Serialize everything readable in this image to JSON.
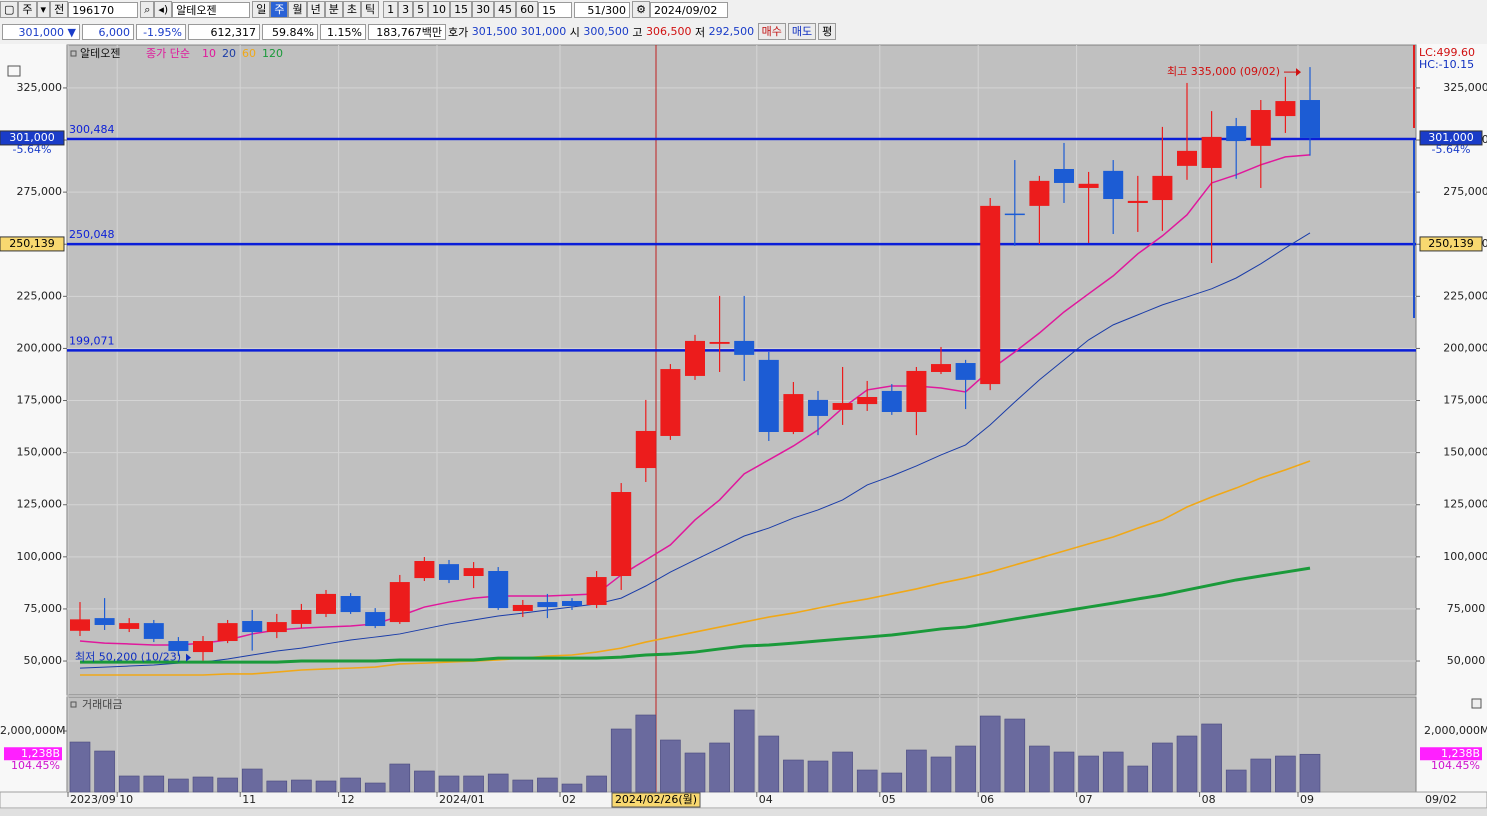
{
  "toolbar": {
    "stock_type": "주",
    "scope": "전",
    "code": "196170",
    "name": "알테오젠",
    "periods": [
      "일",
      "주",
      "월",
      "년",
      "분",
      "초",
      "틱"
    ],
    "intervals": [
      "1",
      "3",
      "5",
      "10",
      "15",
      "30",
      "45",
      "60"
    ],
    "count": "15",
    "position": "51/300",
    "date": "2024/09/02"
  },
  "quote": {
    "price": "301,000",
    "arrow": "▼",
    "change": "6,000",
    "change_rate": "-1.95%",
    "volume": "612,317",
    "ratio": "59.84%",
    "turnover": "1.15%",
    "amount": "183,767백만",
    "bid_ask_label": "호가",
    "ask": "301,500",
    "bid": "301,000",
    "open_label": "시",
    "open": "300,500",
    "high_label": "고",
    "high": "306,500",
    "low_label": "저",
    "low": "292,500",
    "buy": "매수",
    "sell": "매도",
    "avg": "평"
  },
  "chart_data": {
    "type": "candlestick",
    "title": "알테오젠",
    "ma_label": "종가 단순",
    "categories": [
      "2023/09",
      null,
      "10",
      null,
      null,
      null,
      null,
      "11",
      null,
      null,
      null,
      "12",
      null,
      null,
      null,
      "2024/01",
      null,
      null,
      null,
      null,
      "02",
      null,
      null,
      null,
      null,
      null,
      null,
      null,
      "04",
      null,
      null,
      null,
      null,
      "05",
      null,
      null,
      null,
      "06",
      null,
      null,
      null,
      "07",
      null,
      null,
      null,
      null,
      "08",
      null,
      null,
      null,
      "09"
    ],
    "crosshair_label": "2024/02/26(월)",
    "end_label": "09/02",
    "up_color": "#ec1c1c",
    "down_color": "#1c5cd4",
    "open": [
      64500,
      70600,
      65400,
      68200,
      59600,
      54300,
      59600,
      69200,
      63900,
      67800,
      72600,
      81200,
      73500,
      68700,
      89800,
      96500,
      90800,
      93200,
      74000,
      78300,
      78800,
      76900,
      90800,
      142600,
      158000,
      186800,
      202200,
      203600,
      194500,
      159900,
      175300,
      170500,
      173300,
      179600,
      169500,
      188700,
      193000,
      182900,
      264700,
      268400,
      286100,
      277000,
      285200,
      269800,
      271200,
      287600,
      286600,
      306700,
      297200,
      311500,
      319200
    ],
    "high": [
      78300,
      80200,
      70600,
      69700,
      61500,
      62000,
      69700,
      74500,
      72600,
      77400,
      84100,
      82600,
      75400,
      91300,
      99900,
      98500,
      97500,
      95100,
      79300,
      82200,
      80200,
      93200,
      135400,
      175300,
      192500,
      206500,
      225200,
      225200,
      198300,
      183900,
      179600,
      191100,
      184400,
      182900,
      191100,
      200700,
      194500,
      272200,
      290400,
      282800,
      298600,
      284700,
      290400,
      282800,
      306300,
      327400,
      313900,
      310600,
      319200,
      330300,
      335000
    ],
    "low": [
      62000,
      64900,
      63900,
      59100,
      52400,
      50200,
      58600,
      55000,
      61000,
      65800,
      71100,
      72600,
      65800,
      67800,
      88400,
      87400,
      85000,
      74500,
      71100,
      70600,
      74500,
      75400,
      84100,
      135900,
      156100,
      184900,
      188700,
      184400,
      155600,
      158900,
      158400,
      163300,
      170000,
      168100,
      158400,
      187700,
      170900,
      180000,
      249200,
      250100,
      269800,
      250600,
      254900,
      255900,
      256400,
      280900,
      241000,
      281400,
      277000,
      303400,
      292500
    ],
    "close": [
      70000,
      67300,
      68200,
      60600,
      54800,
      59600,
      68200,
      63900,
      68700,
      74500,
      82200,
      73500,
      66800,
      87900,
      98000,
      88900,
      94600,
      75400,
      76900,
      75900,
      76400,
      90300,
      131100,
      160400,
      190100,
      203600,
      203100,
      196900,
      159900,
      178100,
      167600,
      173800,
      176700,
      169500,
      189200,
      192500,
      184900,
      268400,
      264500,
      280400,
      279400,
      279000,
      271700,
      270800,
      282800,
      294800,
      301500,
      299500,
      314400,
      318700,
      301000
    ],
    "series": [
      {
        "name": "10",
        "color": "#e0189c",
        "width": 1.5,
        "values": [
          59600,
          58600,
          58200,
          57700,
          57700,
          58600,
          60100,
          63000,
          64900,
          65800,
          66300,
          66800,
          67800,
          71600,
          75900,
          78300,
          80200,
          81200,
          81200,
          81200,
          81700,
          82200,
          91300,
          98500,
          105700,
          117700,
          127300,
          139800,
          146500,
          153200,
          160900,
          171400,
          180100,
          182000,
          182000,
          181000,
          179100,
          189700,
          198300,
          207400,
          217500,
          226200,
          234800,
          245400,
          254000,
          264100,
          279400,
          283300,
          288100,
          291900,
          292900
        ]
      },
      {
        "name": "20",
        "color": "#1a3ca8",
        "width": 1,
        "values": [
          46600,
          47100,
          47600,
          48100,
          49000,
          49500,
          51000,
          52900,
          54800,
          56200,
          58200,
          60100,
          61500,
          63000,
          65400,
          67800,
          69700,
          71600,
          73000,
          74500,
          75900,
          77400,
          80200,
          86000,
          92700,
          98500,
          104200,
          110000,
          113800,
          118600,
          122500,
          127300,
          134500,
          138800,
          143600,
          148900,
          153700,
          163300,
          174300,
          184900,
          194500,
          204100,
          211300,
          216100,
          220900,
          224700,
          228600,
          233800,
          240600,
          248200,
          255400
        ]
      },
      {
        "name": "60",
        "color": "#f0a818",
        "width": 1.6,
        "values": [
          43300,
          43300,
          43300,
          43300,
          43300,
          43300,
          43800,
          43800,
          44700,
          45700,
          46200,
          46600,
          47100,
          48600,
          49000,
          49500,
          50000,
          50500,
          51400,
          52400,
          52900,
          54300,
          56200,
          59100,
          61500,
          63900,
          66300,
          68700,
          71100,
          73000,
          75400,
          77800,
          79800,
          82200,
          84600,
          87400,
          89800,
          92700,
          96100,
          99400,
          102800,
          106200,
          109500,
          113800,
          117700,
          123900,
          128700,
          133000,
          137800,
          141700,
          146000
        ]
      },
      {
        "name": "120",
        "color": "#1a9a3a",
        "width": 3,
        "values": [
          49500,
          49500,
          49500,
          49500,
          49500,
          49500,
          49500,
          49500,
          49500,
          50000,
          50000,
          50000,
          50000,
          50500,
          50500,
          50500,
          50500,
          51400,
          51400,
          51400,
          51400,
          51400,
          51900,
          52900,
          53400,
          54300,
          55800,
          57200,
          57700,
          58600,
          59600,
          60600,
          61500,
          62500,
          63900,
          65400,
          66300,
          68200,
          70200,
          72100,
          74000,
          75900,
          77800,
          79800,
          81700,
          84100,
          86500,
          88900,
          90800,
          92700,
          94600
        ]
      }
    ],
    "ylim": [
      33700,
      345600
    ],
    "yticks": [
      {
        "value": 50000,
        "label": "50,000"
      },
      {
        "value": 75000,
        "label": "75,000"
      },
      {
        "value": 100000,
        "label": "100,000"
      },
      {
        "value": 125000,
        "label": "125,000"
      },
      {
        "value": 150000,
        "label": "150,000"
      },
      {
        "value": 175000,
        "label": "175,000"
      },
      {
        "value": 200000,
        "label": "200,000"
      },
      {
        "value": 225000,
        "label": "225,000"
      },
      {
        "value": 250000,
        "label": "250,000"
      },
      {
        "value": 275000,
        "label": "275,000"
      },
      {
        "value": 300000,
        "label": "300,000"
      },
      {
        "value": 325000,
        "label": "325,000"
      }
    ],
    "grid": true,
    "hlines": [
      {
        "value": 300484,
        "label": "300,484"
      },
      {
        "value": 250048,
        "label": "250,048"
      },
      {
        "value": 199071,
        "label": "199,071"
      }
    ],
    "hline_color": "#0a1ed8",
    "price_markers": [
      {
        "value": 301000,
        "label": "301,000",
        "change": "-5.64%",
        "color": "#1a3cc8",
        "text_color": "#ffffff"
      },
      {
        "value": 250139,
        "label": "250,139",
        "color": "#f8d870",
        "text_color": "#000000"
      }
    ],
    "lc": "LC:499.60",
    "hc": "HC:-10.15",
    "high_note": "최고 335,000 (09/02)",
    "low_note": "최저 50,200 (10/23)",
    "volume": {
      "title": "거래대금",
      "color": "#6a6a9e",
      "values": [
        1639000,
        1344000,
        525000,
        525000,
        426000,
        492000,
        459000,
        754000,
        361000,
        393000,
        361000,
        459000,
        295000,
        918000,
        689000,
        525000,
        525000,
        590000,
        393000,
        459000,
        262000,
        525000,
        2066000,
        2525000,
        1705000,
        1279000,
        1607000,
        2689000,
        1836000,
        1049000,
        1016000,
        1311000,
        721000,
        623000,
        1377000,
        1148000,
        1508000,
        2492000,
        2393000,
        1508000,
        1311000,
        1180000,
        1311000,
        852000,
        1607000,
        1836000,
        2230000,
        721000,
        1082000,
        1180000,
        1238000
      ],
      "ylim": [
        0,
        3115000
      ],
      "yticks": [
        {
          "value": 2000000,
          "label": "2,000,000M"
        }
      ],
      "last_label": "1,238B",
      "last_change": "104.45%"
    }
  }
}
